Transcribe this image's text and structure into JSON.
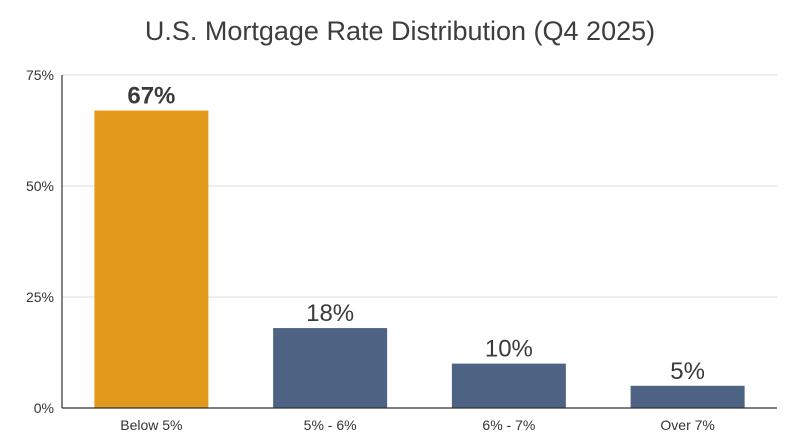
{
  "chart_data": {
    "type": "bar",
    "title": "U.S. Mortgage Rate Distribution (Q4 2025)",
    "xlabel": "",
    "ylabel": "",
    "categories": [
      "Below 5%",
      "5% - 6%",
      "6% - 7%",
      "Over 7%"
    ],
    "values": [
      67,
      18,
      10,
      5
    ],
    "data_labels": [
      "67%",
      "18%",
      "10%",
      "5%"
    ],
    "highlight_index": 0,
    "ylim": [
      0,
      75
    ],
    "yticks": [
      0,
      25,
      50,
      75
    ],
    "ytick_labels": [
      "0%",
      "25%",
      "50%",
      "75%"
    ],
    "grid": true,
    "legend": "none",
    "colors": {
      "highlight": "#E39A1C",
      "bar": "#4E6283",
      "grid": "#dddddd",
      "axis": "#333333"
    }
  }
}
